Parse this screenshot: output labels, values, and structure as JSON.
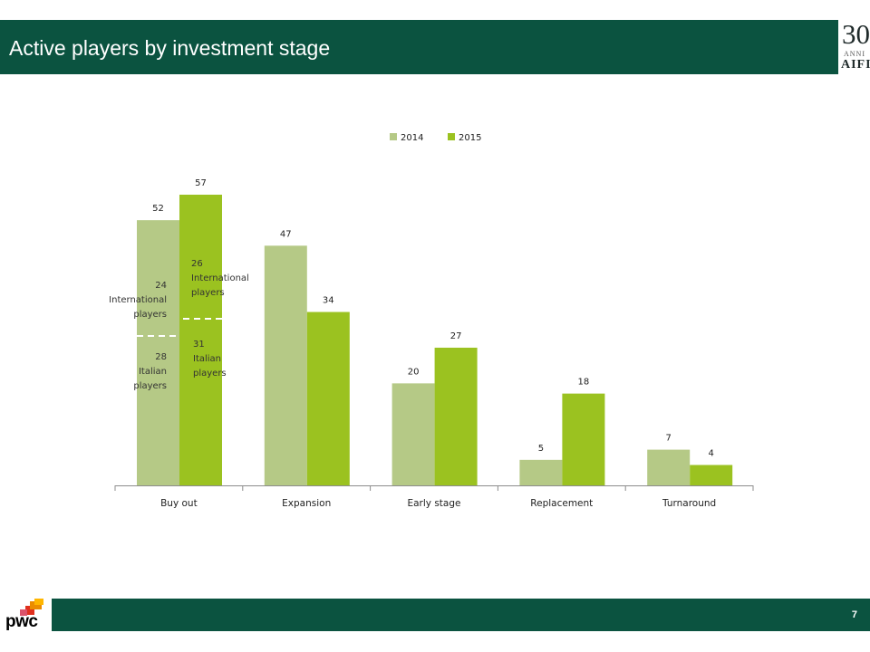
{
  "title": "Active players by investment stage",
  "page_number": "7",
  "logos": {
    "aifi": {
      "line1": "30",
      "line2": "ANNI",
      "line3": "AIFI"
    },
    "pwc": "pwc"
  },
  "colors": {
    "header": "#0b5340",
    "series_2014": "#b5c986",
    "series_2015": "#9bc220"
  },
  "chart_data": {
    "type": "bar",
    "categories": [
      "Buy out",
      "Expansion",
      "Early stage",
      "Replacement",
      "Turnaround"
    ],
    "series": [
      {
        "name": "2014",
        "values": [
          52,
          47,
          20,
          5,
          7
        ]
      },
      {
        "name": "2015",
        "values": [
          57,
          34,
          27,
          18,
          4
        ]
      }
    ],
    "legend_position": "top",
    "grid": false,
    "ylim": [
      0,
      60
    ],
    "annotations": {
      "buyout_2014": {
        "international": {
          "value": "24",
          "line1": "International",
          "line2": "players"
        },
        "italian": {
          "value": "28",
          "line1": "Italian",
          "line2": "players"
        }
      },
      "buyout_2015": {
        "international": {
          "value": "26",
          "line1": "International",
          "line2": "players"
        },
        "italian": {
          "value": "31",
          "line1": "Italian",
          "line2": "players"
        }
      }
    }
  }
}
